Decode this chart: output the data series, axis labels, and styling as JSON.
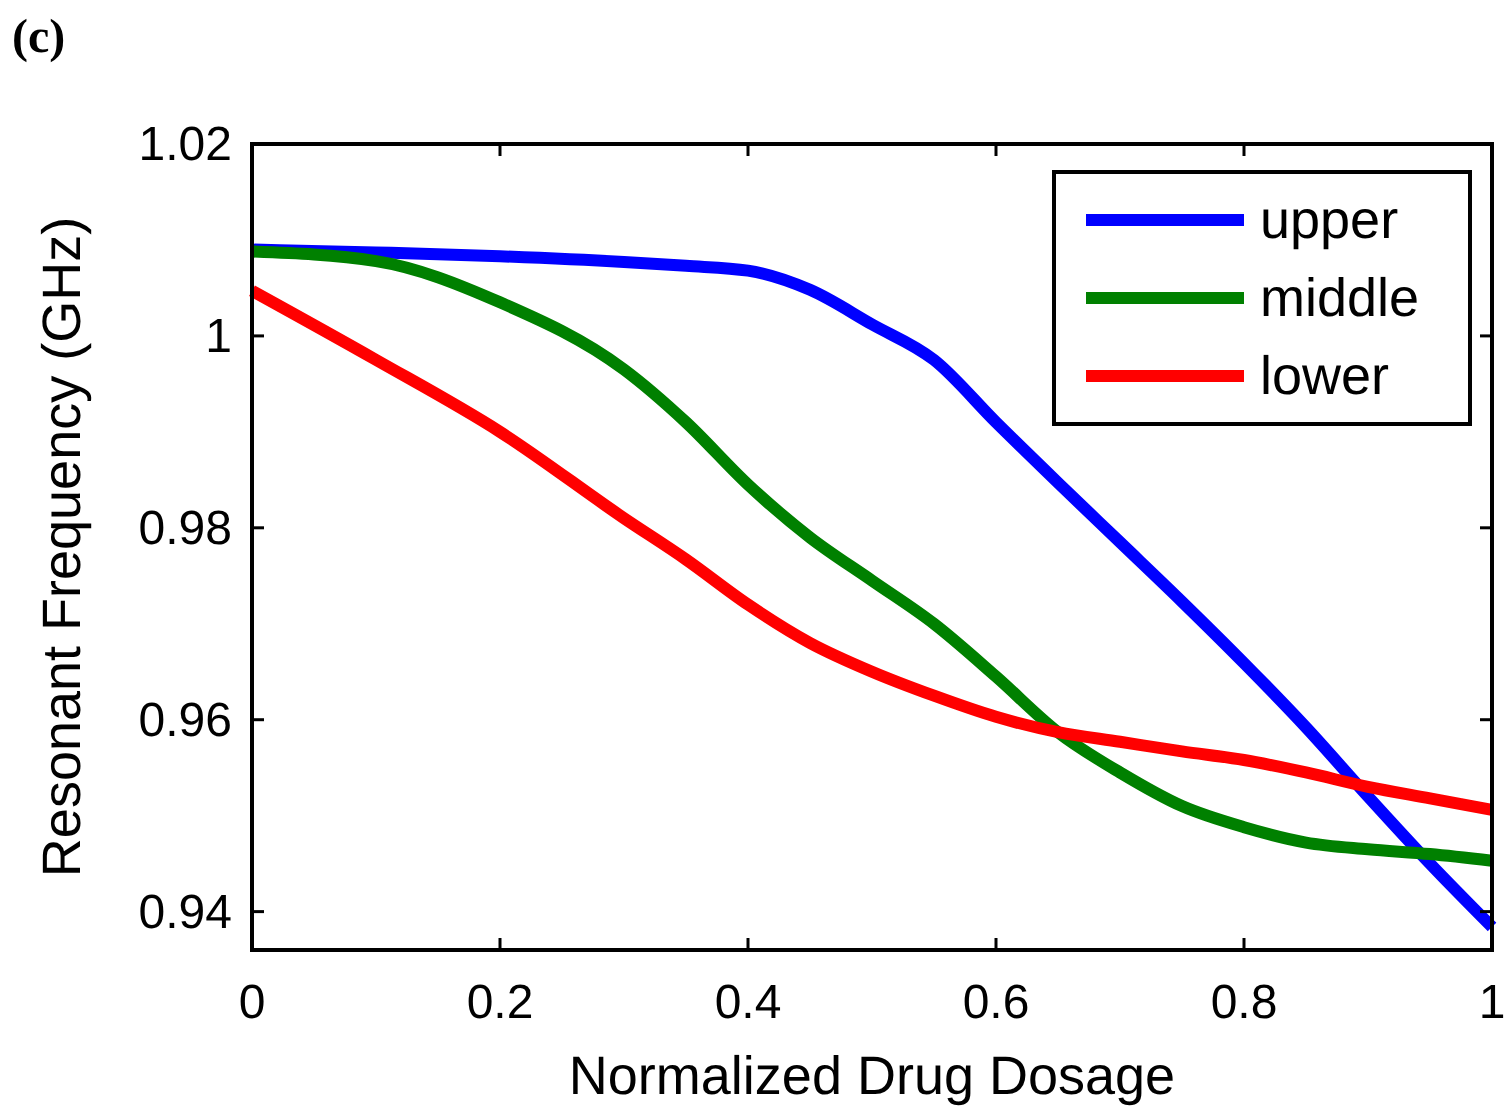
{
  "chart_data": {
    "type": "line",
    "annotations": [
      "(c)"
    ],
    "xlabel": "Normalized Drug Dosage",
    "ylabel": "Resonant Frequency (GHz)",
    "x": [
      0,
      0.1,
      0.2,
      0.3,
      0.35,
      0.4,
      0.45,
      0.5,
      0.55,
      0.6,
      0.65,
      0.7,
      0.75,
      0.8,
      0.85,
      0.9,
      0.95,
      1
    ],
    "series": [
      {
        "name": "upper",
        "color": "#0000ff",
        "values": [
          1.009,
          1.0087,
          1.0083,
          1.0077,
          1.0073,
          1.0068,
          1.0048,
          1.0012,
          0.9975,
          0.991,
          0.9847,
          0.9785,
          0.9723,
          0.9659,
          0.9592,
          0.952,
          0.945,
          0.9384
        ]
      },
      {
        "name": "middle",
        "color": "#008000",
        "values": [
          1.0088,
          1.0078,
          1.0035,
          0.9965,
          0.991,
          0.9845,
          0.979,
          0.9745,
          0.97,
          0.9645,
          0.9587,
          0.9545,
          0.951,
          0.9488,
          0.9472,
          0.9465,
          0.946,
          0.9453
        ]
      },
      {
        "name": "lower",
        "color": "#ff0000",
        "values": [
          1.0047,
          0.9975,
          0.99,
          0.981,
          0.9767,
          0.972,
          0.968,
          0.965,
          0.9625,
          0.9603,
          0.9587,
          0.9577,
          0.9567,
          0.9558,
          0.9545,
          0.953,
          0.9518,
          0.9506
        ]
      }
    ],
    "xlim": [
      0,
      1
    ],
    "xticks": [
      0,
      0.2,
      0.4,
      0.6,
      0.8,
      1
    ],
    "ylim": [
      0.936,
      1.02
    ],
    "yticks": [
      0.94,
      0.96,
      0.98,
      1,
      1.02
    ],
    "legend": "top right",
    "grid": false,
    "line_style": "solid"
  }
}
